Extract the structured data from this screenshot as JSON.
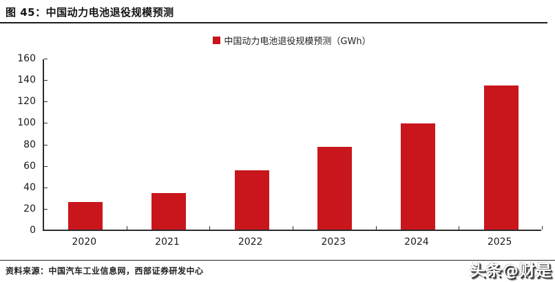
{
  "header": {
    "title": "图 45：中国动力电池退役规模预测"
  },
  "legend": {
    "label": "中国动力电池退役规模预测（GWh）"
  },
  "chart_data": {
    "type": "bar",
    "title": "中国动力电池退役规模预测",
    "unit": "GWh",
    "categories": [
      "2020",
      "2021",
      "2022",
      "2023",
      "2024",
      "2025"
    ],
    "values": [
      26,
      34,
      55,
      77,
      99,
      134
    ],
    "xlabel": "",
    "ylabel": "",
    "ylim": [
      0,
      160
    ],
    "ytick_step": 20,
    "grid": false,
    "legend_entries": [
      "中国动力电池退役规模预测（GWh）"
    ],
    "legend_position": "top-center",
    "bar_color": "#c9161d"
  },
  "footer": {
    "source": "资料来源：中国汽车工业信息网，西部证券研发中心"
  },
  "watermark": {
    "text": "头条@财是"
  },
  "colors": {
    "bar": "#c9161d",
    "axis": "#2b2b2b",
    "title_rule": "#1a1a1a"
  }
}
